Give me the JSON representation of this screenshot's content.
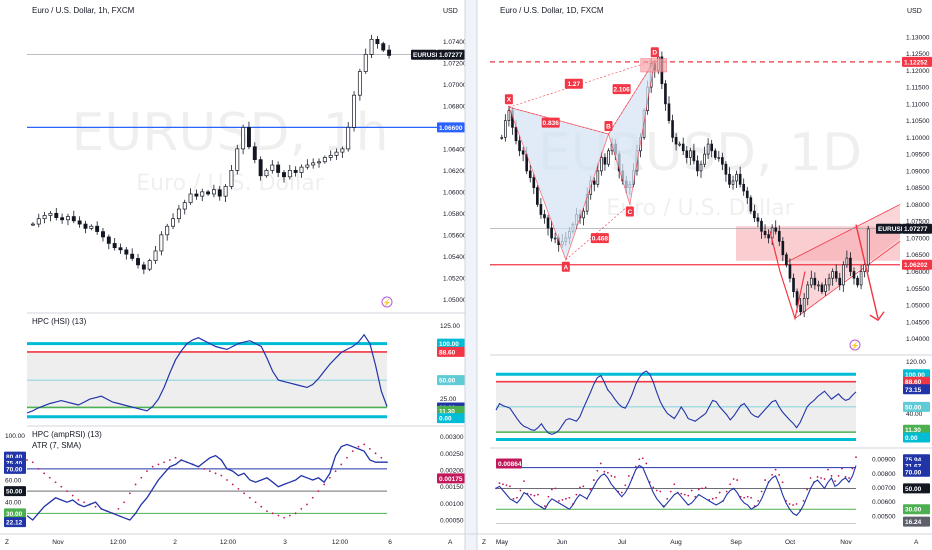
{
  "chart_data": [
    {
      "type": "candlestick",
      "title": "Euro / U.S. Dollar, 1h, FXCM",
      "watermark": "EURUSD, 1h",
      "watermark_sub": "Euro / U.S. Dollar",
      "currency_label": "USD",
      "symbol_tag": "EURUSD",
      "last_price_label": "1.07277",
      "level_label": "1.06600",
      "y_ticks": [
        "1.07400",
        "1.07200",
        "1.07000",
        "1.06800",
        "1.06600",
        "1.06400",
        "1.06200",
        "1.06000",
        "1.05800",
        "1.05600",
        "1.05400",
        "1.05200",
        "1.05000"
      ],
      "y_tick_values": [
        1.074,
        1.072,
        1.07,
        1.068,
        1.066,
        1.064,
        1.062,
        1.06,
        1.058,
        1.056,
        1.054,
        1.052,
        1.05
      ],
      "ylim": [
        1.049,
        1.076
      ],
      "x_ticks": [
        "Nov",
        "12:00",
        "2",
        "12:00",
        "3",
        "12:00",
        "6"
      ],
      "last_price": 1.07277,
      "horizontal_level": 1.066,
      "close_series": [
        1.057,
        1.0575,
        1.0578,
        1.058,
        1.0576,
        1.0574,
        1.0577,
        1.0573,
        1.057,
        1.0566,
        1.0568,
        1.0563,
        1.0558,
        1.0552,
        1.0548,
        1.0546,
        1.0542,
        1.0538,
        1.0532,
        1.0528,
        1.0536,
        1.0545,
        1.056,
        1.0568,
        1.0575,
        1.0584,
        1.059,
        1.0598,
        1.0596,
        1.06,
        1.0598,
        1.0602,
        1.0596,
        1.0605,
        1.062,
        1.064,
        1.066,
        1.0642,
        1.063,
        1.0615,
        1.062,
        1.0625,
        1.0618,
        1.0614,
        1.062,
        1.0618,
        1.0623,
        1.0625,
        1.0627,
        1.0628,
        1.0632,
        1.0634,
        1.0637,
        1.064,
        1.066,
        1.069,
        1.0712,
        1.0728,
        1.0742,
        1.0738,
        1.0732,
        1.0727
      ]
    },
    {
      "type": "line",
      "title": "HPC (HSI) (13)",
      "y_ticks": [
        "125.00",
        "100.00",
        "88.60",
        "50.00",
        "25.00",
        "12.60",
        "11.30",
        "0.00"
      ],
      "ylim": [
        -10,
        135
      ],
      "levels": {
        "top": 100.0,
        "upper": 88.6,
        "mid": 50.0,
        "lower": 12.6,
        "bottom": 0.0
      },
      "tags": {
        "top": "100.00",
        "upper": "88.60",
        "mid": "50.00",
        "lower": "12.60",
        "low2": "11.30",
        "bottom": "0.00"
      },
      "values": [
        5,
        8,
        12,
        15,
        18,
        20,
        22,
        20,
        18,
        16,
        20,
        24,
        26,
        28,
        24,
        20,
        18,
        16,
        14,
        12,
        10,
        8,
        14,
        24,
        40,
        60,
        78,
        90,
        100,
        105,
        108,
        104,
        100,
        96,
        94,
        92,
        96,
        100,
        102,
        104,
        100,
        96,
        80,
        62,
        50,
        48,
        46,
        44,
        42,
        40,
        44,
        52,
        62,
        72,
        80,
        88,
        92,
        96,
        102,
        112,
        100,
        70,
        35,
        14
      ]
    },
    {
      "type": "line",
      "title": "HPC (ampRSI) (13)",
      "subtitle": "ATR (7, SMA)",
      "y_ticks": [
        "100.00",
        "80.40",
        "75.40",
        "70.00",
        "60.00",
        "50.00",
        "40.00",
        "30.00",
        "22.12"
      ],
      "right_ticks": [
        "0.00300",
        "0.00250",
        "0.00200",
        "0.00175",
        "0.00150",
        "0.00100",
        "0.00050"
      ],
      "tags": {
        "a": "80.40",
        "b": "75.40",
        "c": "70.00",
        "d": "50.00",
        "e": "30.00",
        "f": "22.12",
        "atr": "0.00175"
      },
      "ylim": [
        15,
        105
      ],
      "levels": {
        "upper": 70.0,
        "mid": 50.0,
        "lower": 30.0
      },
      "values": [
        28,
        24,
        30,
        36,
        40,
        44,
        42,
        40,
        42,
        38,
        36,
        38,
        40,
        34,
        32,
        30,
        28,
        26,
        24,
        30,
        38,
        44,
        52,
        60,
        66,
        72,
        74,
        78,
        76,
        74,
        72,
        76,
        80,
        82,
        78,
        70,
        68,
        64,
        66,
        60,
        58,
        60,
        62,
        58,
        54,
        56,
        58,
        60,
        64,
        62,
        60,
        62,
        58,
        66,
        82,
        90,
        92,
        90,
        88,
        86,
        78,
        76,
        76,
        76
      ],
      "atr_dots": [
        78,
        76,
        70,
        66,
        62,
        58,
        54,
        50,
        46,
        42,
        40,
        38,
        36,
        34,
        32,
        30,
        34,
        40,
        48,
        56,
        62,
        68,
        72,
        74,
        76,
        78,
        80,
        78,
        76,
        74,
        72,
        70,
        68,
        66,
        64,
        60,
        56,
        52,
        48,
        44,
        40,
        36,
        32,
        30,
        28,
        26,
        28,
        30,
        34,
        38,
        44,
        50,
        56,
        62,
        68,
        74,
        80,
        86,
        90,
        92,
        88,
        84,
        80,
        76
      ]
    },
    {
      "type": "candlestick",
      "title": "Euro / U.S. Dollar, 1D, FXCM",
      "watermark": "EURUSD, 1D",
      "watermark_sub": "Euro / U.S. Dollar",
      "currency_label": "USD",
      "symbol_tag": "EURUSD",
      "last_price_label": "1.07277",
      "level_high_label": "1.12252",
      "level_low_label": "1.06202",
      "y_ticks": [
        "1.13000",
        "1.12500",
        "1.12000",
        "1.11500",
        "1.11000",
        "1.10500",
        "1.10000",
        "1.09500",
        "1.09000",
        "1.08500",
        "1.08000",
        "1.07500",
        "1.07000",
        "1.06500",
        "1.06000",
        "1.05500",
        "1.05000",
        "1.04500",
        "1.04000"
      ],
      "y_tick_values": [
        1.13,
        1.125,
        1.12,
        1.115,
        1.11,
        1.105,
        1.1,
        1.095,
        1.09,
        1.085,
        1.08,
        1.075,
        1.07,
        1.065,
        1.06,
        1.055,
        1.05,
        1.045,
        1.04
      ],
      "ylim": [
        1.036,
        1.135
      ],
      "x_ticks": [
        "May",
        "Jun",
        "Jul",
        "Aug",
        "Sep",
        "Oct",
        "Nov"
      ],
      "last_price": 1.07277,
      "level_high": 1.12252,
      "level_low": 1.06202,
      "pattern_points": [
        {
          "label": "X",
          "i": 2,
          "price": 1.109
        },
        {
          "label": "A",
          "i": 18,
          "price": 1.0635
        },
        {
          "label": "B",
          "i": 30,
          "price": 1.101
        },
        {
          "label": "C",
          "i": 36,
          "price": 1.08
        },
        {
          "label": "D",
          "i": 43,
          "price": 1.123
        }
      ],
      "ratios": [
        "1.27",
        "0.836",
        "2.106",
        "0.468"
      ],
      "close_series": [
        1.1,
        1.105,
        1.108,
        1.103,
        1.099,
        1.096,
        1.095,
        1.09,
        1.088,
        1.085,
        1.08,
        1.077,
        1.076,
        1.073,
        1.07,
        1.07,
        1.068,
        1.069,
        1.07,
        1.072,
        1.074,
        1.077,
        1.076,
        1.078,
        1.083,
        1.087,
        1.086,
        1.09,
        1.094,
        1.092,
        1.096,
        1.098,
        1.095,
        1.09,
        1.087,
        1.085,
        1.086,
        1.09,
        1.096,
        1.1,
        1.108,
        1.115,
        1.122,
        1.12,
        1.124,
        1.116,
        1.11,
        1.105,
        1.1,
        1.098,
        1.098,
        1.096,
        1.094,
        1.096,
        1.093,
        1.09,
        1.092,
        1.095,
        1.098,
        1.096,
        1.094,
        1.094,
        1.092,
        1.089,
        1.086,
        1.087,
        1.089,
        1.086,
        1.084,
        1.082,
        1.078,
        1.076,
        1.075,
        1.072,
        1.071,
        1.07,
        1.073,
        1.072,
        1.069,
        1.065,
        1.062,
        1.058,
        1.054,
        1.05,
        1.048,
        1.052,
        1.056,
        1.058,
        1.056,
        1.056,
        1.054,
        1.056,
        1.058,
        1.06,
        1.058,
        1.056,
        1.062,
        1.064,
        1.06,
        1.058,
        1.056,
        1.06,
        1.062,
        1.0727
      ]
    },
    {
      "type": "line",
      "title": "",
      "y_ticks": [
        "120.00",
        "100.00",
        "88.60",
        "73.15",
        "50.00",
        "40.00",
        "11.30",
        "0.00"
      ],
      "tags": {
        "top": "100.00",
        "upper": "88.60",
        "cur": "73.15",
        "mid": "50.00",
        "lower": "11.30",
        "bottom": "0.00"
      },
      "ylim": [
        -10,
        125
      ],
      "levels": {
        "top": 100.0,
        "upper": 88.6,
        "mid": 50.0,
        "lower": 11.3,
        "bottom": 0.0
      },
      "values": [
        45,
        55,
        52,
        50,
        48,
        40,
        32,
        25,
        20,
        18,
        15,
        14,
        18,
        24,
        16,
        10,
        8,
        10,
        14,
        22,
        30,
        32,
        30,
        28,
        35,
        48,
        60,
        72,
        85,
        95,
        98,
        88,
        76,
        70,
        62,
        55,
        50,
        48,
        58,
        70,
        85,
        95,
        102,
        105,
        100,
        88,
        72,
        58,
        48,
        40,
        36,
        32,
        40,
        50,
        42,
        32,
        30,
        28,
        32,
        36,
        40,
        50,
        60,
        58,
        50,
        44,
        38,
        30,
        36,
        44,
        52,
        55,
        48,
        40,
        36,
        34,
        40,
        46,
        52,
        58,
        60,
        50,
        42,
        36,
        30,
        25,
        18,
        26,
        38,
        50,
        56,
        60,
        66,
        70,
        74,
        68,
        62,
        66,
        70,
        64,
        60,
        62,
        68,
        73
      ]
    },
    {
      "type": "line",
      "title": "",
      "y_ticks": [
        "0.00900",
        "0.00800",
        "0.00700",
        "0.00600",
        "0.00500"
      ],
      "left_tag": "0.00864",
      "tags": {
        "a": "75.94",
        "b": "71.67",
        "c": "70.00",
        "d": "50.00",
        "e": "30.00",
        "f": "16.24"
      },
      "ylim": [
        10,
        85
      ],
      "levels": {
        "upper": 70.0,
        "mid": 50.0,
        "lower": 30.0
      },
      "values": [
        50,
        52,
        48,
        44,
        40,
        38,
        36,
        40,
        46,
        44,
        40,
        36,
        34,
        32,
        30,
        36,
        40,
        38,
        36,
        34,
        32,
        30,
        34,
        40,
        44,
        42,
        40,
        46,
        52,
        58,
        62,
        64,
        60,
        54,
        50,
        46,
        42,
        46,
        52,
        60,
        68,
        72,
        70,
        62,
        54,
        46,
        40,
        36,
        32,
        36,
        40,
        44,
        46,
        42,
        38,
        34,
        36,
        40,
        44,
        42,
        40,
        38,
        36,
        34,
        36,
        38,
        44,
        48,
        50,
        46,
        40,
        36,
        34,
        30,
        32,
        34,
        40,
        48,
        56,
        60,
        62,
        54,
        44,
        36,
        30,
        26,
        24,
        28,
        34,
        42,
        50,
        56,
        58,
        54,
        50,
        56,
        60,
        52,
        54,
        58,
        60,
        56,
        62,
        72
      ]
    }
  ]
}
